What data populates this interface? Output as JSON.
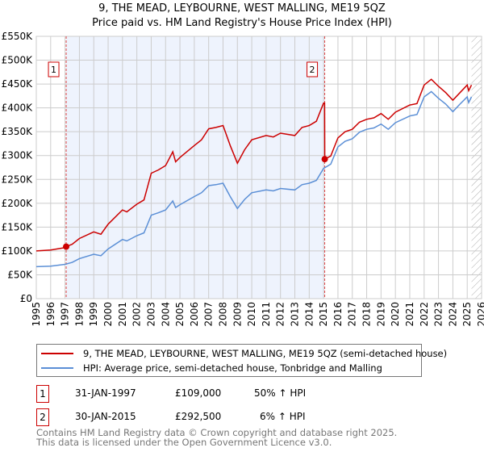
{
  "title": "9, THE MEAD, LEYBOURNE, WEST MALLING, ME19 5QZ",
  "subtitle": "Price paid vs. HM Land Registry's House Price Index (HPI)",
  "chart_data": {
    "type": "line",
    "title": "9, THE MEAD, LEYBOURNE, WEST MALLING, ME19 5QZ",
    "subtitle": "Price paid vs. HM Land Registry's House Price Index (HPI)",
    "xlim": [
      1995,
      2026
    ],
    "ylim": [
      0,
      550000
    ],
    "y_ticks": [
      {
        "v": 0,
        "label": "£0"
      },
      {
        "v": 50000,
        "label": "£50K"
      },
      {
        "v": 100000,
        "label": "£100K"
      },
      {
        "v": 150000,
        "label": "£150K"
      },
      {
        "v": 200000,
        "label": "£200K"
      },
      {
        "v": 250000,
        "label": "£250K"
      },
      {
        "v": 300000,
        "label": "£300K"
      },
      {
        "v": 350000,
        "label": "£350K"
      },
      {
        "v": 400000,
        "label": "£400K"
      },
      {
        "v": 450000,
        "label": "£450K"
      },
      {
        "v": 500000,
        "label": "£500K"
      },
      {
        "v": 550000,
        "label": "£550K"
      }
    ],
    "x_ticks": [
      "1995",
      "1996",
      "1997",
      "1998",
      "1999",
      "2000",
      "2001",
      "2002",
      "2003",
      "2004",
      "2005",
      "2006",
      "2007",
      "2008",
      "2009",
      "2010",
      "2011",
      "2012",
      "2013",
      "2014",
      "2015",
      "2016",
      "2017",
      "2018",
      "2019",
      "2020",
      "2021",
      "2022",
      "2023",
      "2024",
      "2025",
      "2026"
    ],
    "grid": true,
    "shaded_range": [
      1997.08,
      2015.08
    ],
    "forecast_hatch_from": 2025.3,
    "series": [
      {
        "name": "9, THE MEAD, LEYBOURNE, WEST MALLING, ME19 5QZ (semi-detached house)",
        "color": "#cc0000",
        "x": [
          1995,
          1996,
          1997,
          1997.08,
          1997.5,
          1998,
          1999,
          1999.5,
          2000,
          2001,
          2001.3,
          2002,
          2002.5,
          2003,
          2003.5,
          2004,
          2004.5,
          2004.7,
          2005,
          2006,
          2006.5,
          2007,
          2007.5,
          2008,
          2008.5,
          2009,
          2009.5,
          2010,
          2011,
          2011.5,
          2012,
          2013,
          2013.5,
          2014,
          2014.5,
          2015,
          2015.07,
          2015.08,
          2015.5,
          2016,
          2016.5,
          2017,
          2017.5,
          2018,
          2018.5,
          2019,
          2019.5,
          2020,
          2021,
          2021.5,
          2022,
          2022.5,
          2023,
          2023.5,
          2024,
          2024.5,
          2025,
          2025.1,
          2025.3
        ],
        "values": [
          100000,
          102000,
          107000,
          109000,
          114000,
          126000,
          140000,
          135000,
          156000,
          186000,
          182000,
          198000,
          207000,
          263000,
          270000,
          279000,
          308000,
          287000,
          296000,
          321000,
          333000,
          356000,
          359000,
          363000,
          321000,
          284000,
          312000,
          333000,
          342000,
          339000,
          347000,
          342000,
          359000,
          363000,
          372000,
          410000,
          410000,
          292500,
          299000,
          337000,
          350000,
          355000,
          370000,
          376000,
          379000,
          388000,
          376000,
          391000,
          406000,
          409000,
          448000,
          460000,
          445000,
          432000,
          416000,
          432000,
          448000,
          436000,
          448000
        ]
      },
      {
        "name": "HPI: Average price, semi-detached house, Tonbridge and Malling",
        "color": "#5b8fd6",
        "x": [
          1995,
          1996,
          1997,
          1997.5,
          1998,
          1999,
          1999.5,
          2000,
          2001,
          2001.3,
          2002,
          2002.5,
          2003,
          2003.5,
          2004,
          2004.5,
          2004.7,
          2005,
          2006,
          2006.5,
          2007,
          2007.5,
          2008,
          2008.5,
          2009,
          2009.5,
          2010,
          2011,
          2011.5,
          2012,
          2013,
          2013.5,
          2014,
          2014.5,
          2015,
          2015.5,
          2016,
          2016.5,
          2017,
          2017.5,
          2018,
          2018.5,
          2019,
          2019.5,
          2020,
          2021,
          2021.5,
          2022,
          2022.5,
          2023,
          2023.5,
          2024,
          2024.5,
          2025,
          2025.1,
          2025.3
        ],
        "values": [
          67000,
          68000,
          72000,
          76000,
          84000,
          93000,
          90000,
          104000,
          124000,
          121000,
          132000,
          138000,
          175000,
          180000,
          186000,
          205000,
          191000,
          197000,
          214000,
          222000,
          237000,
          239000,
          242000,
          214000,
          189000,
          208000,
          222000,
          228000,
          226000,
          231000,
          228000,
          239000,
          242000,
          248000,
          273000,
          282000,
          318000,
          330000,
          335000,
          349000,
          355000,
          358000,
          366000,
          355000,
          369000,
          383000,
          386000,
          423000,
          434000,
          420000,
          408000,
          392000,
          408000,
          423000,
          411000,
          423000
        ]
      }
    ],
    "annotations": [
      {
        "label": "1",
        "x": 1997.08,
        "value": 109000
      },
      {
        "label": "2",
        "x": 2015.08,
        "value": 292500
      }
    ]
  },
  "legend": {
    "property": "9, THE MEAD, LEYBOURNE, WEST MALLING, ME19 5QZ (semi-detached house)",
    "hpi": "HPI: Average price, semi-detached house, Tonbridge and Malling"
  },
  "transactions": [
    {
      "num": "1",
      "date": "31-JAN-1997",
      "price": "£109,000",
      "hpi": "50% ↑ HPI"
    },
    {
      "num": "2",
      "date": "30-JAN-2015",
      "price": "£292,500",
      "hpi": "6% ↑ HPI"
    }
  ],
  "footer": {
    "line1": "Contains HM Land Registry data © Crown copyright and database right 2025.",
    "line2": "This data is licensed under the Open Government Licence v3.0."
  }
}
